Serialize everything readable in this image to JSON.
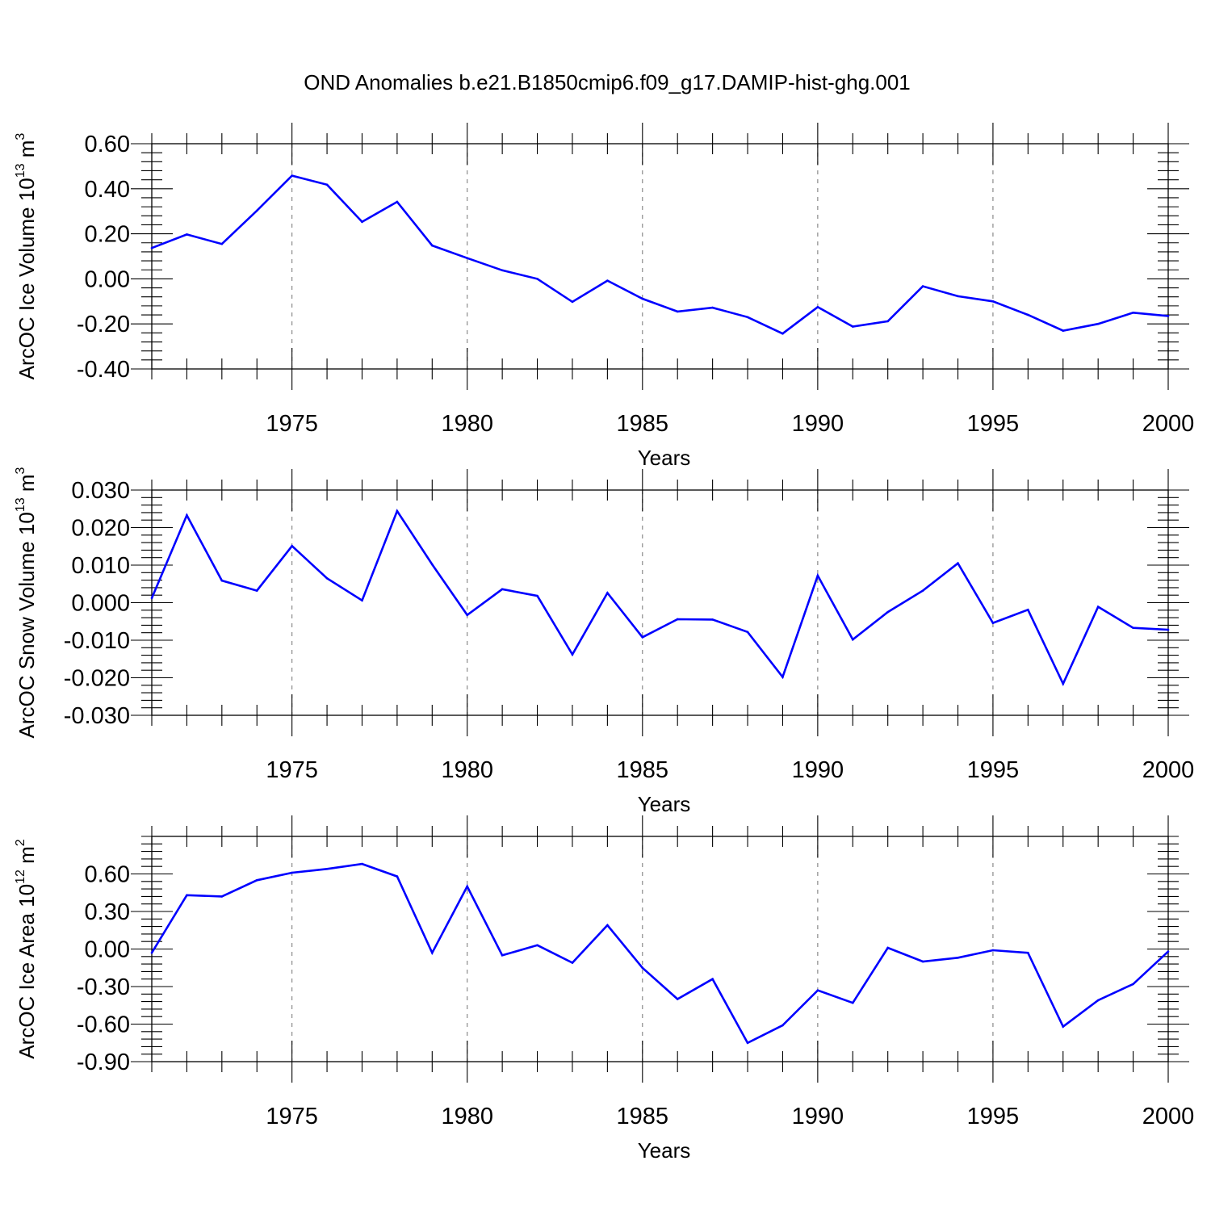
{
  "title": "OND Anomalies b.e21.B1850cmip6.f09_g17.DAMIP-hist-ghg.001",
  "colors": {
    "series": "#0000ff",
    "grid": "#808080",
    "axis": "#000000"
  },
  "chart_data": [
    {
      "type": "line",
      "ylabel": {
        "text": "ArcOC Ice Volume 10",
        "sup": "13",
        "unit": " m",
        "unit_sup": "3"
      },
      "xlabel": "Years",
      "xlim": [
        1971,
        2000
      ],
      "ylim": [
        -0.4,
        0.6
      ],
      "yticks": [
        0.6,
        0.4,
        0.2,
        0.0,
        -0.2,
        -0.4
      ],
      "ytick_labels": [
        "0.60",
        "0.40",
        "0.20",
        "0.00",
        "-0.20",
        "-0.40"
      ],
      "xticks": [
        1975,
        1980,
        1985,
        1990,
        1995,
        2000
      ],
      "xtick_labels": [
        "1975",
        "1980",
        "1985",
        "1990",
        "1995",
        "2000"
      ],
      "grid": "vertical dashed at major x ticks",
      "x": [
        1971,
        1972,
        1973,
        1974,
        1975,
        1976,
        1977,
        1978,
        1979,
        1980,
        1981,
        1982,
        1983,
        1984,
        1985,
        1986,
        1987,
        1988,
        1989,
        1990,
        1991,
        1992,
        1993,
        1994,
        1995,
        1996,
        1997,
        1998,
        1999,
        2000
      ],
      "y": [
        0.137,
        0.197,
        0.155,
        0.303,
        0.458,
        0.418,
        0.253,
        0.342,
        0.148,
        0.092,
        0.038,
        0.0,
        -0.102,
        -0.008,
        -0.088,
        -0.145,
        -0.128,
        -0.17,
        -0.243,
        -0.125,
        -0.212,
        -0.188,
        -0.033,
        -0.077,
        -0.1,
        -0.16,
        -0.23,
        -0.2,
        -0.15,
        -0.165
      ]
    },
    {
      "type": "line",
      "ylabel": {
        "text": "ArcOC Snow Volume 10",
        "sup": "13",
        "unit": " m",
        "unit_sup": "3"
      },
      "xlabel": "Years",
      "xlim": [
        1971,
        2000
      ],
      "ylim": [
        -0.03,
        0.03
      ],
      "yticks": [
        0.03,
        0.02,
        0.01,
        0.0,
        -0.01,
        -0.02,
        -0.03
      ],
      "ytick_labels": [
        "0.030",
        "0.020",
        "0.010",
        "0.000",
        "-0.010",
        "-0.020",
        "-0.030"
      ],
      "xticks": [
        1975,
        1980,
        1985,
        1990,
        1995,
        2000
      ],
      "xtick_labels": [
        "1975",
        "1980",
        "1985",
        "1990",
        "1995",
        "2000"
      ],
      "grid": "vertical dashed at major x ticks",
      "x": [
        1971,
        1972,
        1973,
        1974,
        1975,
        1976,
        1977,
        1978,
        1979,
        1980,
        1981,
        1982,
        1983,
        1984,
        1985,
        1986,
        1987,
        1988,
        1989,
        1990,
        1991,
        1992,
        1993,
        1994,
        1995,
        1996,
        1997,
        1998,
        1999,
        2000
      ],
      "y": [
        0.0012,
        0.0233,
        0.0059,
        0.0032,
        0.0151,
        0.0065,
        0.0006,
        0.0244,
        0.0102,
        -0.0033,
        0.0036,
        0.0018,
        -0.0138,
        0.0026,
        -0.0092,
        -0.0044,
        -0.0045,
        -0.0078,
        -0.0198,
        0.0072,
        -0.0098,
        -0.0025,
        0.0032,
        0.0105,
        -0.0054,
        -0.0019,
        -0.0216,
        -0.0011,
        -0.0067,
        -0.0072
      ]
    },
    {
      "type": "line",
      "ylabel": {
        "text": "ArcOC Ice Area 10",
        "sup": "12",
        "unit": " m",
        "unit_sup": "2"
      },
      "xlabel": "Years",
      "xlim": [
        1971,
        2000
      ],
      "ylim": [
        -0.9,
        0.9
      ],
      "yticks": [
        0.6,
        0.3,
        0.0,
        -0.3,
        -0.6,
        -0.9
      ],
      "ytick_labels": [
        "0.60",
        "0.30",
        "0.00",
        "-0.30",
        "-0.60",
        "-0.90"
      ],
      "xticks": [
        1975,
        1980,
        1985,
        1990,
        1995,
        2000
      ],
      "xtick_labels": [
        "1975",
        "1980",
        "1985",
        "1990",
        "1995",
        "2000"
      ],
      "grid": "vertical dashed at major x ticks",
      "x": [
        1971,
        1972,
        1973,
        1974,
        1975,
        1976,
        1977,
        1978,
        1979,
        1980,
        1981,
        1982,
        1983,
        1984,
        1985,
        1986,
        1987,
        1988,
        1989,
        1990,
        1991,
        1992,
        1993,
        1994,
        1995,
        1996,
        1997,
        1998,
        1999,
        2000
      ],
      "y": [
        -0.03,
        0.43,
        0.42,
        0.55,
        0.61,
        0.64,
        0.68,
        0.58,
        -0.03,
        0.5,
        -0.05,
        0.03,
        -0.11,
        0.19,
        -0.15,
        -0.4,
        -0.24,
        -0.75,
        -0.61,
        -0.33,
        -0.43,
        0.01,
        -0.1,
        -0.07,
        -0.01,
        -0.03,
        -0.62,
        -0.41,
        -0.28,
        -0.02
      ]
    }
  ]
}
